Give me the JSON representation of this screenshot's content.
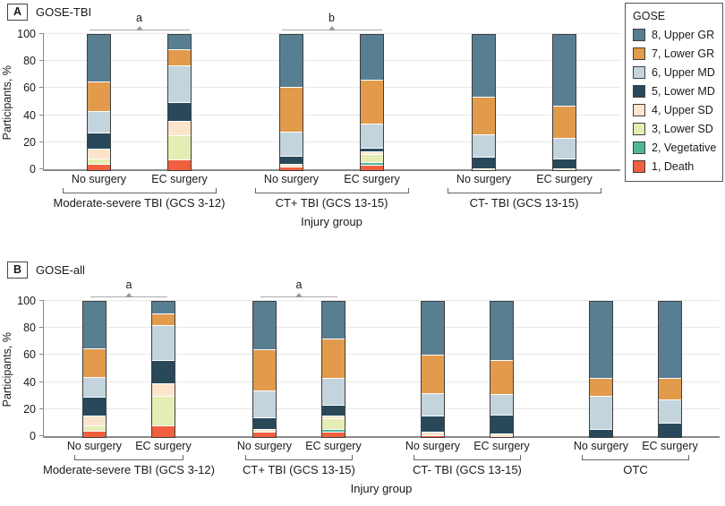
{
  "legend": {
    "title": "GOSE",
    "items": [
      {
        "label": "8, Upper GR",
        "color": "#587e92"
      },
      {
        "label": "7, Lower GR",
        "color": "#e29a4b"
      },
      {
        "label": "6, Upper MD",
        "color": "#c3d4dd"
      },
      {
        "label": "5, Lower MD",
        "color": "#29495b"
      },
      {
        "label": "4, Upper SD",
        "color": "#fce5cb"
      },
      {
        "label": "3, Lower SD",
        "color": "#e5edb4"
      },
      {
        "label": "2, Vegetative",
        "color": "#50b795"
      },
      {
        "label": "1, Death",
        "color": "#f15f3f"
      }
    ]
  },
  "chart_data": [
    {
      "type": "bar",
      "stacked": true,
      "panel": "A",
      "title": "GOSE-TBI",
      "xlabel": "Injury group",
      "ylabel": "Participants, %",
      "ylim": [
        0,
        100
      ],
      "yticks": [
        0,
        20,
        40,
        60,
        80,
        100
      ],
      "series_order": [
        "1, Death",
        "2, Vegetative",
        "3, Lower SD",
        "4, Upper SD",
        "5, Lower MD",
        "6, Upper MD",
        "7, Lower GR",
        "8, Upper GR"
      ],
      "groups": [
        {
          "label": "Moderate-severe TBI (GCS 3-12)",
          "significance": "a",
          "bars": [
            {
              "label": "No surgery",
              "values": [
                4,
                0,
                4,
                7,
                12,
                16,
                22,
                35
              ]
            },
            {
              "label": "EC surgery",
              "values": [
                7,
                0,
                18,
                11,
                14,
                27,
                12,
                11
              ]
            }
          ]
        },
        {
          "label": "CT+ TBI (GCS 13-15)",
          "significance": "b",
          "bars": [
            {
              "label": "No surgery",
              "values": [
                2,
                0,
                0,
                2,
                6,
                18,
                33,
                39
              ]
            },
            {
              "label": "EC surgery",
              "values": [
                3,
                2,
                6,
                2,
                3,
                18,
                32,
                34
              ]
            }
          ]
        },
        {
          "label": "CT- TBI (GCS 13-15)",
          "significance": null,
          "bars": [
            {
              "label": "No surgery",
              "values": [
                0,
                0,
                1,
                0,
                8,
                17,
                28,
                46
              ]
            },
            {
              "label": "EC surgery",
              "values": [
                0,
                0,
                1,
                0,
                7,
                15,
                24,
                53
              ]
            }
          ]
        }
      ]
    },
    {
      "type": "bar",
      "stacked": true,
      "panel": "B",
      "title": "GOSE-all",
      "xlabel": "Injury group",
      "ylabel": "Participants, %",
      "ylim": [
        0,
        100
      ],
      "yticks": [
        0,
        20,
        40,
        60,
        80,
        100
      ],
      "series_order": [
        "1, Death",
        "2, Vegetative",
        "3, Lower SD",
        "4, Upper SD",
        "5, Lower MD",
        "6, Upper MD",
        "7, Lower GR",
        "8, Upper GR"
      ],
      "groups": [
        {
          "label": "Moderate-severe TBI (GCS 3-12)",
          "significance": "a",
          "bars": [
            {
              "label": "No surgery",
              "values": [
                4,
                0,
                4,
                7,
                14,
                15,
                21,
                35
              ]
            },
            {
              "label": "EC surgery",
              "values": [
                8,
                0,
                22,
                9,
                17,
                26,
                9,
                9
              ]
            }
          ]
        },
        {
          "label": "CT+ TBI (GCS 13-15)",
          "significance": "a",
          "bars": [
            {
              "label": "No surgery",
              "values": [
                3,
                0,
                0,
                2,
                9,
                20,
                30,
                36
              ]
            },
            {
              "label": "EC surgery",
              "values": [
                3,
                2,
                8,
                2,
                8,
                20,
                29,
                28
              ]
            }
          ]
        },
        {
          "label": "CT- TBI (GCS 13-15)",
          "significance": null,
          "bars": [
            {
              "label": "No surgery",
              "values": [
                1,
                0,
                0,
                2,
                12,
                17,
                28,
                40
              ]
            },
            {
              "label": "EC surgery",
              "values": [
                0,
                0,
                0,
                2,
                14,
                15,
                25,
                44
              ]
            }
          ]
        },
        {
          "label": "OTC",
          "significance": null,
          "bars": [
            {
              "label": "No surgery",
              "values": [
                0,
                0,
                0,
                0,
                5,
                25,
                13,
                57
              ]
            },
            {
              "label": "EC surgery",
              "values": [
                0,
                0,
                0,
                0,
                10,
                17,
                16,
                57
              ]
            }
          ]
        }
      ]
    }
  ]
}
